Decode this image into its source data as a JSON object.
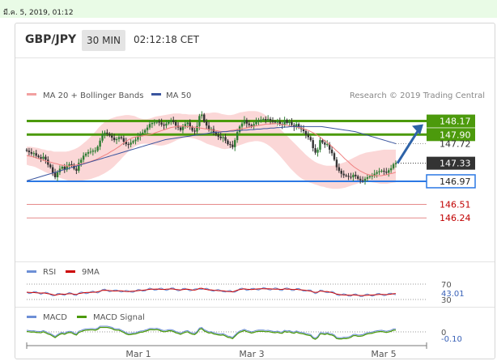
{
  "date_stamp": "มี.ค. 5, 2019, 01:12",
  "header": {
    "pair": "GBP/JPY",
    "timeframe": "30 MIN",
    "time": "02:12:18 CET"
  },
  "legend": {
    "bb_label": "MA 20 + Bollinger Bands",
    "ma50_label": "MA 50",
    "source": "Research © 2019 Trading Central"
  },
  "colors": {
    "up": "#2e7d32",
    "down": "#333333",
    "band": "#f9c9c9",
    "ma20": "#f08080",
    "ma50": "#3a559f",
    "resistance": "#4c9a0c",
    "support": "#2b78e4",
    "target": "#e58a8a",
    "arrow": "#2e63a8",
    "price_tag": "#333333",
    "rsi": "#6d8fd6",
    "ninema": "#cc0000",
    "macd": "#6d8fd6",
    "signal": "#4c9a0c"
  },
  "levels": [
    {
      "value": 148.17,
      "label": "148.17",
      "style": "resistance-box"
    },
    {
      "value": 147.9,
      "label": "147.90",
      "style": "resistance-box"
    },
    {
      "value": 147.72,
      "label": "147.72",
      "style": "plain"
    },
    {
      "value": 147.33,
      "label": "147.33",
      "style": "price"
    },
    {
      "value": 146.97,
      "label": "146.97",
      "style": "support-box"
    },
    {
      "value": 146.51,
      "label": "146.51",
      "style": "target"
    },
    {
      "value": 146.24,
      "label": "146.24",
      "style": "target"
    }
  ],
  "rsi": {
    "label": "RSI",
    "ma_label": "9MA",
    "upper": "70",
    "lower": "30",
    "value": "43.01"
  },
  "macd": {
    "label": "MACD",
    "signal_label": "MACD Signal",
    "zero": "0",
    "value": "-0.10"
  },
  "x_axis": [
    "Mar 1",
    "Mar 3",
    "Mar 5"
  ],
  "chart_data": {
    "type": "candlestick",
    "ylim": [
      146.05,
      148.55
    ],
    "price_series": {
      "name": "GBP/JPY 30 MIN",
      "close": [
        147.58,
        147.55,
        147.52,
        147.53,
        147.48,
        147.45,
        147.42,
        147.46,
        147.4,
        147.3,
        147.25,
        147.14,
        147.05,
        147.15,
        147.22,
        147.26,
        147.2,
        147.28,
        147.31,
        147.3,
        147.22,
        147.18,
        147.34,
        147.4,
        147.48,
        147.52,
        147.55,
        147.56,
        147.58,
        147.58,
        147.66,
        147.78,
        147.9,
        147.94,
        147.92,
        147.88,
        147.84,
        147.79,
        147.81,
        147.85,
        147.83,
        147.76,
        147.71,
        147.7,
        147.74,
        147.77,
        147.8,
        147.86,
        147.92,
        147.94,
        147.99,
        148.04,
        148.11,
        148.13,
        148.14,
        148.16,
        148.14,
        148.1,
        148.08,
        148.12,
        148.16,
        148.18,
        148.15,
        148.08,
        148.04,
        147.99,
        148.06,
        148.11,
        148.14,
        148.05,
        147.98,
        147.96,
        148.07,
        148.27,
        148.3,
        148.16,
        148.08,
        148.0,
        148.01,
        147.94,
        147.9,
        147.86,
        147.83,
        147.85,
        147.78,
        147.71,
        147.7,
        147.65,
        147.79,
        147.95,
        148.06,
        148.12,
        148.19,
        148.12,
        148.09,
        148.06,
        148.11,
        148.16,
        148.19,
        148.2,
        148.21,
        148.19,
        148.21,
        148.18,
        148.16,
        148.14,
        148.16,
        148.11,
        148.09,
        148.19,
        148.13,
        148.15,
        148.09,
        148.05,
        148.11,
        148.04,
        148.01,
        147.97,
        147.9,
        147.85,
        147.79,
        147.63,
        147.54,
        147.6,
        147.79,
        147.74,
        147.7,
        147.71,
        147.6,
        147.53,
        147.4,
        147.25,
        147.18,
        147.12,
        147.09,
        147.08,
        147.06,
        147.05,
        147.1,
        147.07,
        147.02,
        146.99,
        146.98,
        147.02,
        147.05,
        147.07,
        147.08,
        147.12,
        147.15,
        147.17,
        147.18,
        147.16,
        147.14,
        147.19,
        147.23,
        147.31,
        147.33
      ]
    },
    "ma20": [
      147.48,
      147.47,
      147.46,
      147.44,
      147.42,
      147.4,
      147.38,
      147.36,
      147.35,
      147.33,
      147.32,
      147.3,
      147.29,
      147.28,
      147.27,
      147.28,
      147.29,
      147.3,
      147.31,
      147.33,
      147.34,
      147.36,
      147.38,
      147.4,
      147.43,
      147.46,
      147.49,
      147.52,
      147.56,
      147.59,
      147.63,
      147.67,
      147.72,
      147.76,
      147.8,
      147.83,
      147.85,
      147.86,
      147.87,
      147.88,
      147.89,
      147.9,
      147.92,
      147.94,
      147.96,
      147.98,
      148.0,
      148.02,
      148.04,
      148.05,
      148.06,
      148.07,
      148.07,
      148.06,
      148.06,
      148.05,
      148.05,
      148.04,
      148.03,
      148.02,
      148.01,
      148.0,
      147.99,
      147.98,
      147.97,
      147.96,
      147.96,
      147.97,
      147.98,
      147.99,
      148.0,
      148.01,
      148.02,
      148.03,
      148.04,
      148.06,
      148.07,
      148.08,
      148.09,
      148.1,
      148.11,
      148.11,
      148.12,
      148.12,
      148.11,
      148.1,
      148.09,
      148.08,
      148.07,
      148.06,
      148.05,
      148.04,
      148.02,
      148.0,
      147.98,
      147.95,
      147.92,
      147.88,
      147.84,
      147.79,
      147.75,
      147.7,
      147.65,
      147.59,
      147.54,
      147.48,
      147.42,
      147.37,
      147.31,
      147.26,
      147.22,
      147.18,
      147.15,
      147.12,
      147.1,
      147.09,
      147.08,
      147.08,
      147.08,
      147.09,
      147.1,
      147.12,
      147.13,
      147.15
    ],
    "bb_upper": [
      147.66,
      147.66,
      147.65,
      147.64,
      147.63,
      147.61,
      147.6,
      147.58,
      147.58,
      147.56,
      147.56,
      147.56,
      147.56,
      147.56,
      147.57,
      147.59,
      147.61,
      147.64,
      147.68,
      147.73,
      147.78,
      147.84,
      147.9,
      147.97,
      148.04,
      148.1,
      148.15,
      148.19,
      148.22,
      148.24,
      148.26,
      148.27,
      148.28,
      148.29,
      148.29,
      148.28,
      148.27,
      148.24,
      148.22,
      148.21,
      148.21,
      148.22,
      148.24,
      148.26,
      148.27,
      148.28,
      148.29,
      148.3,
      148.31,
      148.32,
      148.32,
      148.32,
      148.31,
      148.31,
      148.3,
      148.3,
      148.3,
      148.3,
      148.31,
      148.32,
      148.33,
      148.33,
      148.34,
      148.34,
      148.33,
      148.31,
      148.3,
      148.29,
      148.29,
      148.3,
      148.32,
      148.34,
      148.35,
      148.36,
      148.37,
      148.37,
      148.37,
      148.36,
      148.34,
      148.31,
      148.27,
      148.22,
      148.16,
      148.1,
      148.04,
      147.98,
      147.92,
      147.86,
      147.8,
      147.74,
      147.68,
      147.62,
      147.56,
      147.5,
      147.45,
      147.4,
      147.36,
      147.33,
      147.31,
      147.29,
      147.28,
      147.28,
      147.28,
      147.29,
      147.31,
      147.33,
      147.35,
      147.38,
      147.41,
      147.44,
      147.47,
      147.5,
      147.52,
      147.54,
      147.55,
      147.56,
      147.57,
      147.58,
      147.59,
      147.6,
      147.6,
      147.6,
      147.6,
      147.6
    ],
    "bb_lower": [
      147.3,
      147.28,
      147.27,
      147.25,
      147.22,
      147.19,
      147.16,
      147.13,
      147.11,
      147.08,
      147.06,
      147.04,
      147.02,
      147.0,
      146.98,
      146.97,
      146.97,
      146.98,
      146.98,
      146.99,
      147.0,
      147.01,
      147.03,
      147.05,
      147.07,
      147.1,
      147.13,
      147.17,
      147.21,
      147.26,
      147.32,
      147.38,
      147.45,
      147.51,
      147.57,
      147.62,
      147.66,
      147.69,
      147.71,
      147.72,
      147.72,
      147.71,
      147.7,
      147.69,
      147.68,
      147.68,
      147.69,
      147.71,
      147.73,
      147.76,
      147.79,
      147.81,
      147.83,
      147.84,
      147.84,
      147.83,
      147.82,
      147.8,
      147.78,
      147.75,
      147.72,
      147.7,
      147.68,
      147.66,
      147.64,
      147.62,
      147.61,
      147.62,
      147.63,
      147.65,
      147.67,
      147.69,
      147.71,
      147.73,
      147.75,
      147.76,
      147.77,
      147.77,
      147.76,
      147.74,
      147.71,
      147.67,
      147.62,
      147.56,
      147.5,
      147.43,
      147.36,
      147.29,
      147.22,
      147.16,
      147.1,
      147.05,
      147.01,
      146.98,
      146.95,
      146.93,
      146.91,
      146.89,
      146.87,
      146.86,
      146.84,
      146.83,
      146.82,
      146.82,
      146.82,
      146.83,
      146.84,
      146.86,
      146.88,
      146.9,
      146.92,
      146.94,
      146.95,
      146.96,
      146.96,
      146.95,
      146.94,
      146.93,
      146.92,
      146.92,
      146.92,
      146.93,
      146.94,
      146.95
    ],
    "ma50": [
      146.98,
      147.0,
      147.02,
      147.04,
      147.06,
      147.08,
      147.1,
      147.12,
      147.14,
      147.16,
      147.18,
      147.2,
      147.22,
      147.24,
      147.26,
      147.28,
      147.3,
      147.32,
      147.34,
      147.36,
      147.38,
      147.4,
      147.42,
      147.44,
      147.46,
      147.48,
      147.5,
      147.52,
      147.54,
      147.56,
      147.58,
      147.6,
      147.62,
      147.64,
      147.66,
      147.68,
      147.7,
      147.72,
      147.74,
      147.76,
      147.78,
      147.8,
      147.81,
      147.82,
      147.83,
      147.84,
      147.85,
      147.86,
      147.87,
      147.88,
      147.89,
      147.9,
      147.91,
      147.92,
      147.93,
      147.94,
      147.95,
      147.95,
      147.96,
      147.96,
      147.97,
      147.97,
      147.98,
      147.98,
      147.99,
      147.99,
      148.0,
      148.0,
      148.01,
      148.01,
      148.02,
      148.02,
      148.03,
      148.03,
      148.04,
      148.04,
      148.05,
      148.05,
      148.06,
      148.06,
      148.06,
      148.06,
      148.06,
      148.06,
      148.06,
      148.06,
      148.06,
      148.06,
      148.05,
      148.04,
      148.03,
      148.02,
      148.01,
      148.0,
      147.99,
      147.98,
      147.97,
      147.96,
      147.94,
      147.92,
      147.9,
      147.88,
      147.86,
      147.84,
      147.82,
      147.8,
      147.78,
      147.76,
      147.74,
      147.72
    ]
  }
}
